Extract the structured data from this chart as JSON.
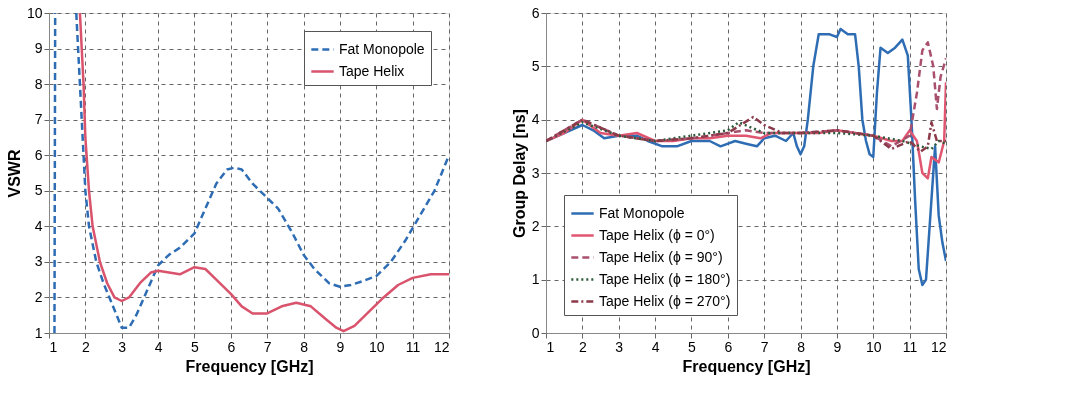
{
  "chart_data": [
    {
      "type": "line",
      "xlabel": "Frequency [GHz]",
      "ylabel": "VSWR",
      "xlim": [
        1,
        12
      ],
      "xticks": [
        1,
        2,
        3,
        4,
        5,
        6,
        7,
        8,
        9,
        10,
        11,
        12
      ],
      "ylim": [
        1,
        10
      ],
      "yticks": [
        1,
        2,
        3,
        4,
        5,
        6,
        7,
        8,
        9,
        10
      ],
      "grid": true,
      "legend": "top right",
      "series": [
        {
          "name": "Fat Monopole",
          "color": "#2e6db4",
          "line_style": "dashed",
          "x": [
            1.15,
            1.17,
            1.5,
            1.75,
            1.85,
            1.95,
            2.0,
            2.1,
            2.3,
            2.5,
            2.7,
            2.9,
            3.0,
            3.2,
            3.4,
            3.7,
            4.0,
            4.3,
            4.6,
            5.0,
            5.3,
            5.6,
            5.9,
            6.1,
            6.3,
            6.6,
            7.0,
            7.3,
            7.7,
            8.0,
            8.3,
            8.7,
            9.0,
            9.3,
            9.6,
            10.0,
            10.4,
            10.8,
            11.2,
            11.6,
            12
          ],
          "values": [
            1.0,
            10,
            null,
            10,
            8,
            6,
            5,
            4,
            3,
            2.4,
            1.9,
            1.4,
            1.15,
            1.15,
            1.5,
            2.2,
            2.9,
            3.2,
            3.4,
            3.8,
            4.5,
            5.2,
            5.6,
            5.65,
            5.6,
            5.2,
            4.8,
            4.5,
            3.8,
            3.2,
            2.8,
            2.4,
            2.3,
            2.35,
            2.45,
            2.6,
            3.0,
            3.6,
            4.3,
            5.0,
            6.0
          ]
        },
        {
          "name": "Tape Helix",
          "color": "#d9536c",
          "line_style": "solid",
          "x": [
            1.85,
            1.95,
            2.0,
            2.1,
            2.2,
            2.4,
            2.6,
            2.8,
            3.0,
            3.2,
            3.5,
            3.8,
            4.0,
            4.3,
            4.6,
            5.0,
            5.3,
            5.6,
            6.0,
            6.3,
            6.6,
            7.0,
            7.4,
            7.8,
            8.2,
            8.6,
            8.9,
            9.1,
            9.4,
            9.8,
            10.2,
            10.6,
            11.0,
            11.5,
            12
          ],
          "values": [
            10,
            8,
            6.5,
            5,
            4,
            3,
            2.4,
            2.0,
            1.9,
            2.0,
            2.4,
            2.7,
            2.75,
            2.7,
            2.65,
            2.85,
            2.8,
            2.5,
            2.1,
            1.75,
            1.55,
            1.55,
            1.75,
            1.85,
            1.75,
            1.4,
            1.15,
            1.05,
            1.2,
            1.6,
            2.0,
            2.35,
            2.55,
            2.65,
            2.65
          ]
        }
      ]
    },
    {
      "type": "line",
      "xlabel": "Frequency [GHz]",
      "ylabel": "Group Delay [ns]",
      "xlim": [
        1,
        12
      ],
      "xticks": [
        1,
        2,
        3,
        4,
        5,
        6,
        7,
        8,
        9,
        10,
        11,
        12
      ],
      "ylim": [
        0,
        6
      ],
      "yticks": [
        0,
        1,
        2,
        3,
        4,
        5,
        6
      ],
      "grid": true,
      "legend": "bottom left",
      "series": [
        {
          "name": "Fat Monopole",
          "color": "#2e6db4",
          "line_style": "solid",
          "x": [
            1.0,
            1.5,
            2.0,
            2.3,
            2.6,
            3.0,
            3.5,
            3.8,
            4.2,
            4.6,
            5.0,
            5.5,
            5.8,
            6.2,
            6.5,
            6.8,
            7.0,
            7.3,
            7.6,
            7.8,
            7.9,
            8.0,
            8.1,
            8.2,
            8.35,
            8.5,
            8.8,
            9.0,
            9.1,
            9.3,
            9.5,
            9.6,
            9.7,
            9.8,
            9.9,
            10.0,
            10.1,
            10.2,
            10.4,
            10.6,
            10.8,
            10.95,
            11.05,
            11.15,
            11.25,
            11.35,
            11.45,
            11.6,
            11.7,
            11.8,
            11.9,
            12
          ],
          "values": [
            3.6,
            3.75,
            3.9,
            3.8,
            3.65,
            3.7,
            3.7,
            3.6,
            3.5,
            3.5,
            3.6,
            3.6,
            3.5,
            3.6,
            3.55,
            3.5,
            3.65,
            3.7,
            3.6,
            3.75,
            3.5,
            3.35,
            3.5,
            4.0,
            5.0,
            5.6,
            5.6,
            5.55,
            5.7,
            5.6,
            5.6,
            5.0,
            4.0,
            3.6,
            3.35,
            3.3,
            4.5,
            5.35,
            5.25,
            5.35,
            5.5,
            5.2,
            4.0,
            2.5,
            1.2,
            0.9,
            1.0,
            2.5,
            3.5,
            2.2,
            1.7,
            1.35
          ]
        },
        {
          "name": "Tape Helix (ϕ = 0°)",
          "color": "#e05570",
          "line_style": "solid",
          "x": [
            1,
            1.5,
            2.0,
            2.5,
            3,
            3.5,
            4,
            4.5,
            5,
            5.5,
            6,
            6.5,
            6.9,
            7.2,
            7.6,
            8,
            8.5,
            9,
            9.5,
            10,
            10.5,
            10.8,
            11.0,
            11.2,
            11.35,
            11.5,
            11.6,
            11.8,
            11.95,
            12
          ],
          "values": [
            3.6,
            3.75,
            4.0,
            3.75,
            3.7,
            3.75,
            3.6,
            3.6,
            3.65,
            3.65,
            3.7,
            3.7,
            3.65,
            3.75,
            3.75,
            3.75,
            3.75,
            3.8,
            3.75,
            3.7,
            3.6,
            3.6,
            3.8,
            3.6,
            3.0,
            2.9,
            3.3,
            3.2,
            3.6,
            4.7
          ]
        },
        {
          "name": "Tape Helix (ϕ = 90°)",
          "color": "#a8506e",
          "line_style": "dashed",
          "x": [
            1,
            2,
            3,
            4,
            5,
            6,
            6.5,
            7,
            8,
            9,
            10,
            10.5,
            11,
            11.2,
            11.35,
            11.5,
            11.65,
            11.75,
            11.85,
            12
          ],
          "values": [
            3.6,
            4.0,
            3.7,
            3.6,
            3.65,
            3.75,
            3.8,
            3.75,
            3.75,
            3.8,
            3.7,
            3.5,
            3.7,
            4.5,
            5.3,
            5.45,
            5.0,
            4.2,
            4.8,
            5.15
          ]
        },
        {
          "name": "Tape Helix (ϕ = 180°)",
          "color": "#2d5a3a",
          "line_style": "dotted",
          "x": [
            1,
            2,
            3,
            4,
            5,
            6,
            6.3,
            7,
            8,
            9,
            10,
            10.8,
            11.3,
            11.6,
            11.8,
            12
          ],
          "values": [
            3.6,
            3.95,
            3.7,
            3.6,
            3.7,
            3.8,
            3.95,
            3.75,
            3.75,
            3.75,
            3.7,
            3.6,
            3.5,
            3.45,
            3.6,
            3.55
          ]
        },
        {
          "name": "Tape Helix (ϕ = 270°)",
          "color": "#8b3a4a",
          "line_style": "dashdot",
          "x": [
            1,
            2,
            3,
            4,
            5,
            6,
            6.7,
            7,
            7.5,
            8,
            9,
            10,
            10.5,
            11,
            11.3,
            11.5,
            11.6,
            11.75,
            12
          ],
          "values": [
            3.6,
            4.0,
            3.7,
            3.6,
            3.65,
            3.75,
            4.05,
            3.9,
            3.75,
            3.75,
            3.8,
            3.7,
            3.45,
            3.6,
            3.4,
            3.5,
            3.95,
            3.6,
            3.6
          ]
        }
      ]
    }
  ]
}
